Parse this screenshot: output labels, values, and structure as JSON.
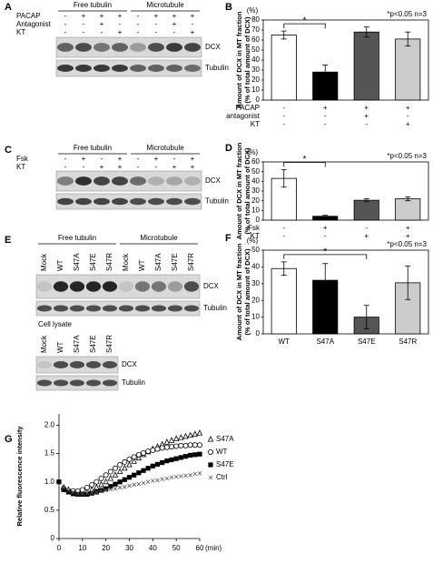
{
  "blots": [
    {
      "letter": "A",
      "groups": [
        "Free tubulin",
        "Microtubule"
      ],
      "conditions": [
        {
          "label": "PACAP",
          "signs": [
            "-",
            "+",
            "+",
            "+",
            "-",
            "+",
            "+",
            "+"
          ]
        },
        {
          "label": "Antagonist",
          "signs": [
            "-",
            "-",
            "+",
            "-",
            "-",
            "-",
            "+",
            "-"
          ]
        },
        {
          "label": "KT",
          "signs": [
            "-",
            "-",
            "-",
            "+",
            "-",
            "-",
            "-",
            "+"
          ]
        }
      ],
      "bands": [
        "DCX",
        "Tubulin"
      ]
    },
    {
      "letter": "C",
      "groups": [
        "Free tubulin",
        "Microtubule"
      ],
      "conditions": [
        {
          "label": "Fsk",
          "signs": [
            "-",
            "+",
            "-",
            "+",
            "-",
            "+",
            "-",
            "+"
          ]
        },
        {
          "label": "KT",
          "signs": [
            "-",
            "-",
            "+",
            "+",
            "-",
            "-",
            "+",
            "+"
          ]
        }
      ],
      "bands": [
        "DCX",
        "Tubulin"
      ]
    },
    {
      "letter": "E",
      "groups": [
        "Free tubulin",
        "Microtubule"
      ],
      "lanes": [
        "Mock",
        "WT",
        "S47A",
        "S47E",
        "S47R",
        "Mock",
        "WT",
        "S47A",
        "S47E",
        "S47R"
      ],
      "bands": [
        "DCX",
        "Tubulin"
      ],
      "lysate": {
        "title": "Cell lysate",
        "lanes": [
          "Mock",
          "WT",
          "S47A",
          "S47E",
          "S47R"
        ],
        "bands": [
          "DCX",
          "Tubulin"
        ]
      }
    }
  ],
  "chart_data": [
    {
      "type": "bar",
      "letter": "B",
      "unit": "(%)",
      "ylabel": [
        "Amount of DCX in MT fraction",
        "(% of total amount of DCX)"
      ],
      "annotation": "*p<0.05   n=3",
      "significance_label": "*",
      "values": [
        65,
        28,
        68,
        61
      ],
      "errors": [
        4,
        7,
        5,
        7
      ],
      "colors": [
        "#ffffff",
        "#000000",
        "#555555",
        "#cccccc"
      ],
      "ylim": [
        0,
        80
      ],
      "yticks": [
        0,
        10,
        20,
        30,
        40,
        50,
        60,
        70,
        80
      ],
      "conditions": [
        {
          "label": "PACAP",
          "signs": [
            "-",
            "+",
            "+",
            "+"
          ]
        },
        {
          "label": "antagonist",
          "signs": [
            "-",
            "-",
            "+",
            "-"
          ]
        },
        {
          "label": "KT",
          "signs": [
            "-",
            "-",
            "-",
            "+"
          ]
        }
      ]
    },
    {
      "type": "bar",
      "letter": "D",
      "unit": "(%)",
      "ylabel": [
        "Amount of DCX in MT fraction",
        "(% of total amount of DCX)"
      ],
      "annotation": "*p<0.05   n=3",
      "significance_label": "*",
      "values": [
        43,
        4,
        20.5,
        22
      ],
      "errors": [
        9,
        1,
        1.5,
        2
      ],
      "colors": [
        "#ffffff",
        "#000000",
        "#555555",
        "#cccccc"
      ],
      "ylim": [
        0,
        60
      ],
      "yticks": [
        0,
        10,
        20,
        30,
        40,
        50,
        60
      ],
      "conditions": [
        {
          "label": "Fsk",
          "signs": [
            "-",
            "+",
            "-",
            "+"
          ]
        },
        {
          "label": "KT",
          "signs": [
            "-",
            "-",
            "+",
            "+"
          ]
        }
      ]
    },
    {
      "type": "bar",
      "letter": "F",
      "unit": "(%)",
      "ylabel": [
        "Amount of DCX in MT fraction",
        "(% of total amount of DCX)"
      ],
      "annotation": "*p<0.05   n=3",
      "significance_label": "*",
      "categories": [
        "WT",
        "S47A",
        "S47E",
        "S47R"
      ],
      "values": [
        39,
        32,
        10,
        30.5
      ],
      "errors": [
        4,
        10,
        7,
        10
      ],
      "colors": [
        "#ffffff",
        "#000000",
        "#555555",
        "#cccccc"
      ],
      "ylim": [
        0,
        50
      ],
      "yticks": [
        0,
        10,
        20,
        30,
        40,
        50
      ]
    },
    {
      "type": "scatter",
      "letter": "G",
      "ylabel": "Relative fluorescence intensity",
      "xlabel": "(min)",
      "x": [
        0,
        2,
        4,
        6,
        8,
        10,
        12,
        14,
        16,
        18,
        20,
        22,
        24,
        26,
        28,
        30,
        32,
        34,
        36,
        38,
        40,
        42,
        44,
        46,
        48,
        50,
        52,
        54,
        56,
        58,
        60
      ],
      "xlim": [
        0,
        60
      ],
      "xticks": [
        0,
        10,
        20,
        30,
        40,
        50,
        60
      ],
      "ylim": [
        0,
        2.2
      ],
      "yticks": [
        0,
        0.5,
        {
          "value": 1,
          "label": "1.0"
        },
        1.5,
        {
          "value": 2,
          "label": "2.0"
        }
      ],
      "series": [
        {
          "name": "S47A",
          "marker": "triangle",
          "color": "#000000",
          "values": [
            null,
            0.9,
            0.86,
            0.82,
            0.8,
            0.8,
            0.82,
            0.86,
            0.9,
            0.95,
            1.0,
            1.06,
            1.12,
            1.18,
            1.24,
            1.3,
            1.36,
            1.42,
            1.48,
            1.53,
            1.58,
            1.62,
            1.66,
            1.7,
            1.73,
            1.76,
            1.78,
            1.8,
            1.82,
            1.84,
            1.86
          ]
        },
        {
          "name": "WT",
          "marker": "circle",
          "color": "#000000",
          "values": [
            null,
            0.88,
            0.85,
            0.84,
            0.84,
            0.86,
            0.9,
            0.95,
            1.0,
            1.06,
            1.12,
            1.18,
            1.24,
            1.3,
            1.35,
            1.4,
            1.44,
            1.48,
            1.51,
            1.54,
            1.56,
            1.58,
            1.6,
            1.61,
            1.62,
            1.63,
            1.64,
            1.64,
            1.65,
            1.65,
            1.65
          ]
        },
        {
          "name": "S47E",
          "marker": "square",
          "color": "#000000",
          "values": [
            1.0,
            0.86,
            0.82,
            0.79,
            0.78,
            0.78,
            0.78,
            0.8,
            0.82,
            0.85,
            0.88,
            0.92,
            0.96,
            1.0,
            1.04,
            1.08,
            1.12,
            1.16,
            1.2,
            1.24,
            1.28,
            1.31,
            1.34,
            1.37,
            1.39,
            1.41,
            1.43,
            1.45,
            1.47,
            1.48,
            1.49
          ]
        },
        {
          "name": "Ctrl",
          "marker": "x",
          "color": "#555555",
          "values": [
            null,
            0.9,
            0.85,
            0.82,
            0.8,
            0.79,
            0.8,
            0.81,
            0.82,
            0.84,
            0.85,
            0.87,
            0.88,
            0.9,
            0.91,
            0.93,
            0.95,
            0.96,
            0.98,
            1.0,
            1.02,
            1.03,
            1.05,
            1.06,
            1.08,
            1.09,
            1.1,
            1.11,
            1.12,
            1.14,
            1.15
          ]
        }
      ]
    }
  ]
}
